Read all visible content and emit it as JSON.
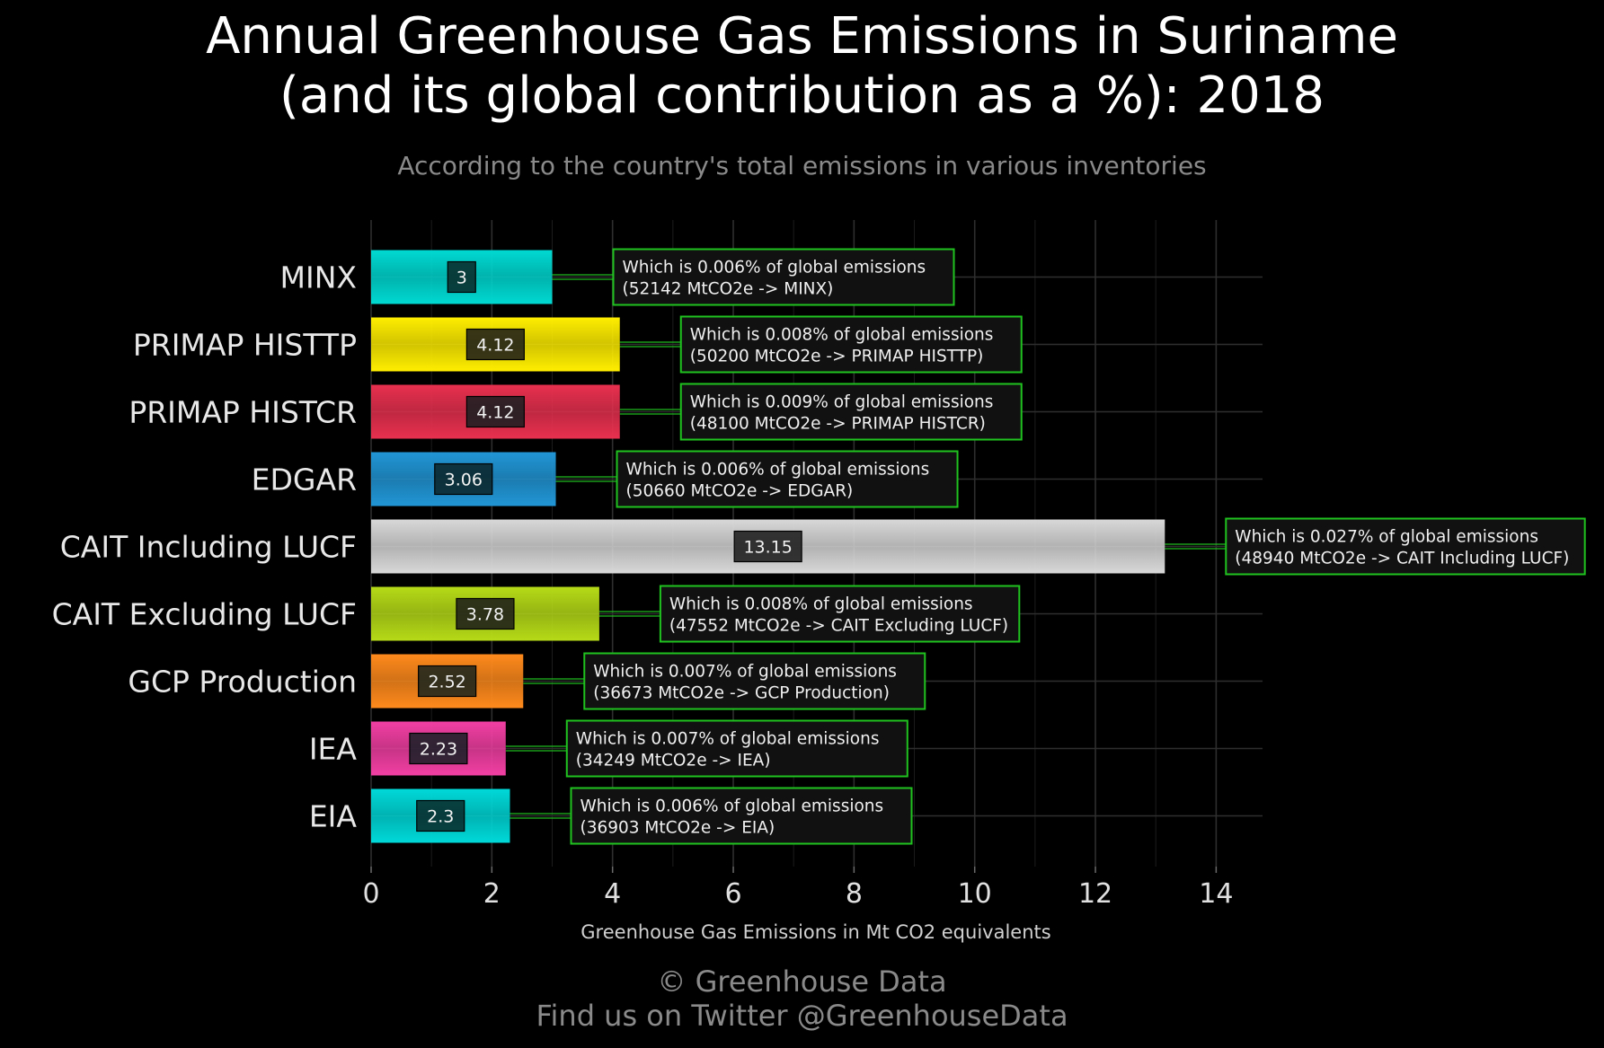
{
  "title_line1": "Annual Greenhouse Gas Emissions in Suriname",
  "title_line2": "(and its global contribution as a %): 2018",
  "subtitle": "According to the country's total emissions in various inventories",
  "footer_line1": "© Greenhouse Data",
  "footer_line2": "Find us on Twitter @GreenhouseData",
  "chart_data": {
    "type": "bar",
    "orientation": "horizontal",
    "xlabel": "Greenhouse Gas Emissions in Mt CO2 equivalents",
    "xlim": [
      0,
      14.8
    ],
    "xticks": [
      0,
      2,
      4,
      6,
      8,
      10,
      12,
      14
    ],
    "grid": true,
    "categories": [
      "MINX",
      "PRIMAP HISTTP",
      "PRIMAP HISTCR",
      "EDGAR",
      "CAIT Including LUCF",
      "CAIT Excluding LUCF",
      "GCP Production",
      "IEA",
      "EIA"
    ],
    "values": [
      3,
      4.12,
      4.12,
      3.06,
      13.15,
      3.78,
      2.52,
      2.23,
      2.3
    ],
    "value_labels": [
      "3",
      "4.12",
      "4.12",
      "3.06",
      "13.15",
      "3.78",
      "2.52",
      "2.23",
      "2.3"
    ],
    "colors": [
      "#00d9d2",
      "#ffee00",
      "#e8304f",
      "#2196d6",
      "#d8d8d8",
      "#b6db17",
      "#ff8a1c",
      "#f23fa3",
      "#00d9d9"
    ],
    "annotations": [
      {
        "line1": "Which is 0.006% of global emissions",
        "line2": "(52142 MtCO2e -> MINX)"
      },
      {
        "line1": "Which is 0.008% of global emissions",
        "line2": "(50200 MtCO2e -> PRIMAP HISTTP)"
      },
      {
        "line1": "Which is 0.009% of global emissions",
        "line2": "(48100 MtCO2e -> PRIMAP HISTCR)"
      },
      {
        "line1": "Which is 0.006% of global emissions",
        "line2": "(50660 MtCO2e -> EDGAR)"
      },
      {
        "line1": "Which is 0.027% of global emissions",
        "line2": "(48940 MtCO2e -> CAIT Including LUCF)"
      },
      {
        "line1": "Which is 0.008% of global emissions",
        "line2": "(47552 MtCO2e -> CAIT Excluding LUCF)"
      },
      {
        "line1": "Which is 0.007% of global emissions",
        "line2": "(36673 MtCO2e -> GCP Production)"
      },
      {
        "line1": "Which is 0.007% of global emissions",
        "line2": "(34249 MtCO2e -> IEA)"
      },
      {
        "line1": "Which is 0.006% of global emissions",
        "line2": "(36903 MtCO2e -> EIA)"
      }
    ],
    "annotation_border_color": "#1fc21f",
    "connector_color": "#1fc21f"
  }
}
